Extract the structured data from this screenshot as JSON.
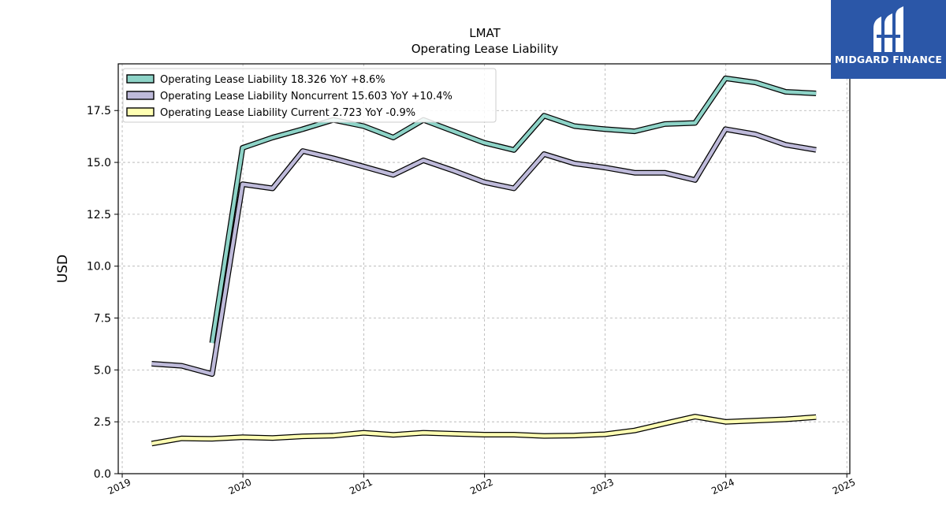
{
  "chart_data": {
    "type": "line",
    "title": "LMAT",
    "subtitle": "Operating Lease Liability",
    "xlabel": "",
    "ylabel": "USD",
    "ylim": [
      0,
      19.75
    ],
    "xlim": [
      "2018-12-20",
      "2025-01-10"
    ],
    "x_ticks": [
      "2019",
      "2020",
      "2021",
      "2022",
      "2023",
      "2024",
      "2025"
    ],
    "y_ticks": [
      "0.0",
      "2.5",
      "5.0",
      "7.5",
      "10.0",
      "12.5",
      "15.0",
      "17.5"
    ],
    "y_tick_values": [
      0,
      2.5,
      5,
      7.5,
      10,
      12.5,
      15,
      17.5
    ],
    "grid": true,
    "legend_position": "top-left",
    "series": [
      {
        "name": "Operating Lease Liability",
        "legend_label": "Operating Lease Liability  18.326 YoY +8.6%",
        "color": "#8dd3c7",
        "x": [
          "2019-09-30",
          "2019-12-31",
          "2020-03-31",
          "2020-06-30",
          "2020-09-30",
          "2020-12-31",
          "2021-03-31",
          "2021-06-30",
          "2021-09-30",
          "2021-12-31",
          "2022-03-31",
          "2022-06-30",
          "2022-09-30",
          "2022-12-31",
          "2023-03-31",
          "2023-06-30",
          "2023-09-30",
          "2023-12-31",
          "2024-03-31",
          "2024-06-30",
          "2024-09-30"
        ],
        "y": [
          6.3,
          15.7,
          16.2,
          16.6,
          17.05,
          16.75,
          16.2,
          17.05,
          16.5,
          15.95,
          15.6,
          17.25,
          16.75,
          16.6,
          16.5,
          16.85,
          16.9,
          19.05,
          18.85,
          18.4,
          18.326
        ]
      },
      {
        "name": "Operating Lease Liability Noncurrent",
        "legend_label": "Operating Lease Liability Noncurrent  15.603 YoY +10.4%",
        "color": "#bebada",
        "x": [
          "2019-03-31",
          "2019-06-30",
          "2019-09-30",
          "2019-12-31",
          "2020-03-31",
          "2020-06-30",
          "2020-09-30",
          "2020-12-31",
          "2021-03-31",
          "2021-06-30",
          "2021-09-30",
          "2021-12-31",
          "2022-03-31",
          "2022-06-30",
          "2022-09-30",
          "2022-12-31",
          "2023-03-31",
          "2023-06-30",
          "2023-09-30",
          "2023-12-31",
          "2024-03-31",
          "2024-06-30",
          "2024-09-30"
        ],
        "y": [
          5.3,
          5.2,
          4.8,
          13.95,
          13.75,
          15.55,
          15.2,
          14.8,
          14.4,
          15.1,
          14.6,
          14.05,
          13.75,
          15.4,
          14.95,
          14.75,
          14.5,
          14.5,
          14.15,
          16.6,
          16.35,
          15.85,
          15.603
        ]
      },
      {
        "name": "Operating Lease Liability Current",
        "legend_label": "Operating Lease Liability Current  2.723 YoY -0.9%",
        "color": "#ffffb3",
        "x": [
          "2019-03-31",
          "2019-06-30",
          "2019-09-30",
          "2019-12-31",
          "2020-03-31",
          "2020-06-30",
          "2020-09-30",
          "2020-12-31",
          "2021-03-31",
          "2021-06-30",
          "2021-09-30",
          "2021-12-31",
          "2022-03-31",
          "2022-06-30",
          "2022-09-30",
          "2022-12-31",
          "2023-03-31",
          "2023-06-30",
          "2023-09-30",
          "2023-12-31",
          "2024-03-31",
          "2024-06-30",
          "2024-09-30"
        ],
        "y": [
          1.45,
          1.7,
          1.68,
          1.76,
          1.72,
          1.8,
          1.83,
          1.97,
          1.87,
          1.97,
          1.92,
          1.88,
          1.88,
          1.82,
          1.84,
          1.9,
          2.08,
          2.42,
          2.75,
          2.5,
          2.56,
          2.62,
          2.723
        ]
      }
    ]
  },
  "logo": {
    "text": "MIDGARD FINANCE",
    "background": "#2b57a8",
    "icon": "midgard-logo-icon"
  }
}
